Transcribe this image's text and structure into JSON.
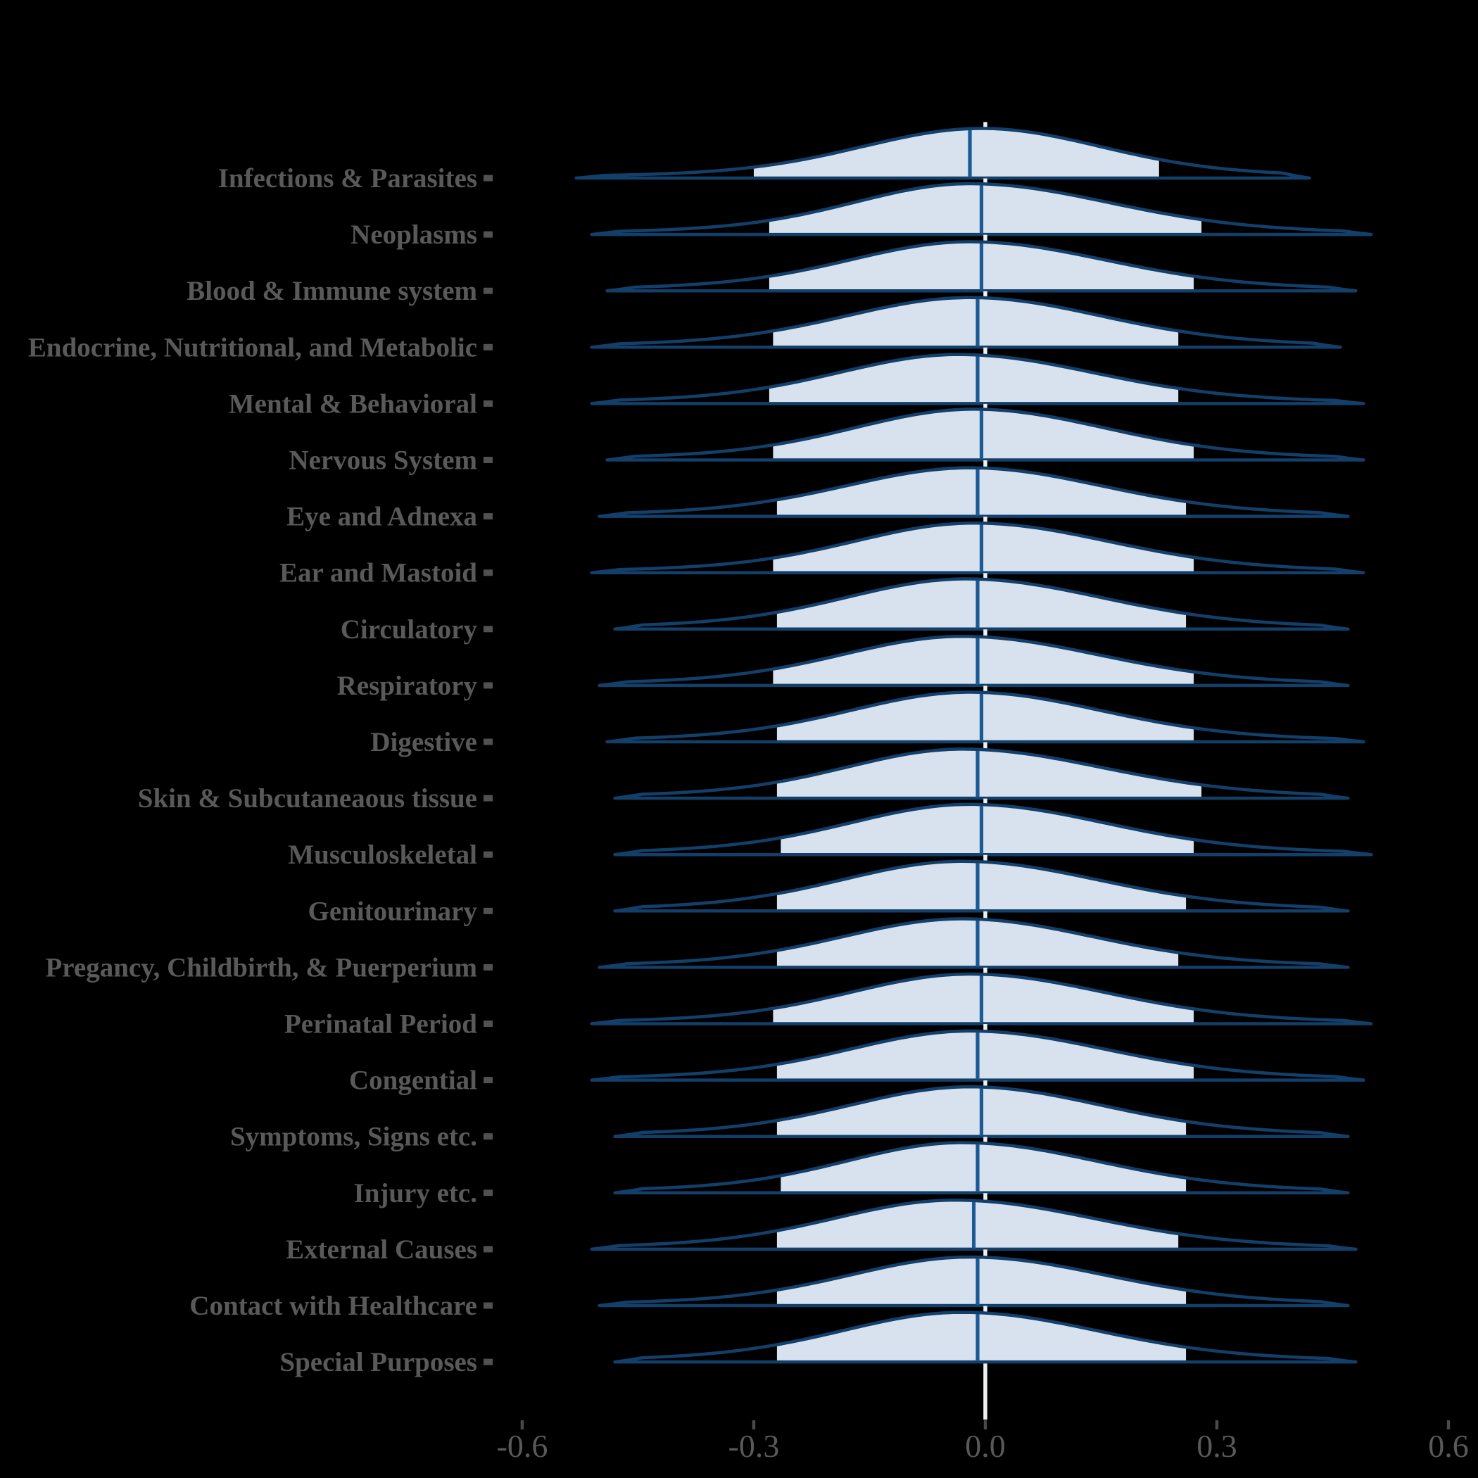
{
  "figure": {
    "background": "#000000"
  },
  "chart_data": {
    "type": "area",
    "subtype": "ridgeline-density",
    "title": "",
    "xlabel": "",
    "ylabel": "",
    "grid": "off",
    "legend": "none",
    "reference_line_x": 0.0,
    "x_axis": {
      "range": [
        -0.64,
        0.64
      ],
      "tick_values": [
        -0.6,
        -0.3,
        0.0,
        0.3,
        0.6
      ],
      "tick_labels": [
        "-0.6",
        "-0.3",
        "0.0",
        "0.3",
        "0.6"
      ]
    },
    "style": {
      "outline_color": "#133f6b",
      "median_line_color": "#1b5a94",
      "fill_color": "#d8e2ee",
      "zero_line_color": "#f0f0f0",
      "label_color": "#595959",
      "axis_tick_color": "#4a4a4a",
      "background": "#000000"
    },
    "categories": [
      {
        "label": "Infections & Parasites",
        "median": -0.02,
        "mode": -0.005,
        "q_low": -0.3,
        "q_high": 0.225,
        "x_min": -0.53,
        "x_max": 0.42,
        "peak": 0.88,
        "width_left": 0.15,
        "width_right": 0.15
      },
      {
        "label": "Neoplasms",
        "median": -0.005,
        "mode": -0.02,
        "q_low": -0.28,
        "q_high": 0.28,
        "x_min": -0.51,
        "x_max": 0.5,
        "peak": 0.9,
        "width_left": 0.145,
        "width_right": 0.175
      },
      {
        "label": "Blood & Immune system",
        "median": -0.005,
        "mode": -0.02,
        "q_low": -0.28,
        "q_high": 0.27,
        "x_min": -0.49,
        "x_max": 0.48,
        "peak": 0.87,
        "width_left": 0.15,
        "width_right": 0.17
      },
      {
        "label": "Endocrine, Nutritional, and Metabolic",
        "median": -0.01,
        "mode": -0.02,
        "q_low": -0.275,
        "q_high": 0.25,
        "x_min": -0.51,
        "x_max": 0.46,
        "peak": 0.88,
        "width_left": 0.155,
        "width_right": 0.165
      },
      {
        "label": "Mental & Behavioral",
        "median": -0.01,
        "mode": -0.035,
        "q_low": -0.28,
        "q_high": 0.25,
        "x_min": -0.51,
        "x_max": 0.49,
        "peak": 0.87,
        "width_left": 0.15,
        "width_right": 0.17
      },
      {
        "label": "Nervous System",
        "median": -0.005,
        "mode": -0.015,
        "q_low": -0.275,
        "q_high": 0.27,
        "x_min": -0.49,
        "x_max": 0.49,
        "peak": 0.9,
        "width_left": 0.15,
        "width_right": 0.165
      },
      {
        "label": "Eye and Adnexa",
        "median": -0.01,
        "mode": -0.02,
        "q_low": -0.27,
        "q_high": 0.26,
        "x_min": -0.5,
        "x_max": 0.47,
        "peak": 0.86,
        "width_left": 0.155,
        "width_right": 0.165
      },
      {
        "label": "Ear and Mastoid",
        "median": -0.005,
        "mode": -0.015,
        "q_low": -0.275,
        "q_high": 0.27,
        "x_min": -0.51,
        "x_max": 0.49,
        "peak": 0.88,
        "width_left": 0.15,
        "width_right": 0.17
      },
      {
        "label": "Circulatory",
        "median": -0.01,
        "mode": -0.025,
        "q_low": -0.27,
        "q_high": 0.26,
        "x_min": -0.48,
        "x_max": 0.47,
        "peak": 0.89,
        "width_left": 0.15,
        "width_right": 0.17
      },
      {
        "label": "Respiratory",
        "median": -0.01,
        "mode": -0.03,
        "q_low": -0.275,
        "q_high": 0.27,
        "x_min": -0.5,
        "x_max": 0.47,
        "peak": 0.87,
        "width_left": 0.15,
        "width_right": 0.17
      },
      {
        "label": "Digestive",
        "median": -0.005,
        "mode": -0.02,
        "q_low": -0.27,
        "q_high": 0.27,
        "x_min": -0.49,
        "x_max": 0.49,
        "peak": 0.88,
        "width_left": 0.15,
        "width_right": 0.165
      },
      {
        "label": "Skin & Subcutaneaous tissue",
        "median": -0.01,
        "mode": -0.03,
        "q_low": -0.27,
        "q_high": 0.28,
        "x_min": -0.48,
        "x_max": 0.47,
        "peak": 0.87,
        "width_left": 0.145,
        "width_right": 0.175
      },
      {
        "label": "Musculoskeletal",
        "median": -0.005,
        "mode": -0.02,
        "q_low": -0.265,
        "q_high": 0.27,
        "x_min": -0.48,
        "x_max": 0.5,
        "peak": 0.89,
        "width_left": 0.15,
        "width_right": 0.17
      },
      {
        "label": "Genitourinary",
        "median": -0.01,
        "mode": -0.03,
        "q_low": -0.27,
        "q_high": 0.26,
        "x_min": -0.48,
        "x_max": 0.47,
        "peak": 0.88,
        "width_left": 0.15,
        "width_right": 0.17
      },
      {
        "label": "Pregancy, Childbirth, & Puerperium",
        "median": -0.01,
        "mode": -0.03,
        "q_low": -0.27,
        "q_high": 0.25,
        "x_min": -0.5,
        "x_max": 0.47,
        "peak": 0.86,
        "width_left": 0.15,
        "width_right": 0.165
      },
      {
        "label": "Perinatal Period",
        "median": -0.005,
        "mode": -0.02,
        "q_low": -0.275,
        "q_high": 0.27,
        "x_min": -0.51,
        "x_max": 0.5,
        "peak": 0.88,
        "width_left": 0.15,
        "width_right": 0.17
      },
      {
        "label": "Congential",
        "median": -0.01,
        "mode": -0.02,
        "q_low": -0.27,
        "q_high": 0.27,
        "x_min": -0.51,
        "x_max": 0.49,
        "peak": 0.87,
        "width_left": 0.15,
        "width_right": 0.17
      },
      {
        "label": "Symptoms, Signs etc.",
        "median": -0.005,
        "mode": -0.02,
        "q_low": -0.27,
        "q_high": 0.26,
        "x_min": -0.48,
        "x_max": 0.47,
        "peak": 0.88,
        "width_left": 0.15,
        "width_right": 0.165
      },
      {
        "label": "Injury etc.",
        "median": -0.01,
        "mode": -0.03,
        "q_low": -0.265,
        "q_high": 0.26,
        "x_min": -0.48,
        "x_max": 0.47,
        "peak": 0.89,
        "width_left": 0.145,
        "width_right": 0.17
      },
      {
        "label": "External Causes",
        "median": -0.015,
        "mode": -0.04,
        "q_low": -0.27,
        "q_high": 0.25,
        "x_min": -0.51,
        "x_max": 0.48,
        "peak": 0.87,
        "width_left": 0.15,
        "width_right": 0.175
      },
      {
        "label": "Contact with Healthcare",
        "median": -0.01,
        "mode": -0.02,
        "q_low": -0.27,
        "q_high": 0.26,
        "x_min": -0.5,
        "x_max": 0.47,
        "peak": 0.86,
        "width_left": 0.15,
        "width_right": 0.17
      },
      {
        "label": "Special Purposes",
        "median": -0.01,
        "mode": -0.03,
        "q_low": -0.27,
        "q_high": 0.26,
        "x_min": -0.48,
        "x_max": 0.48,
        "peak": 0.88,
        "width_left": 0.15,
        "width_right": 0.17
      }
    ]
  }
}
